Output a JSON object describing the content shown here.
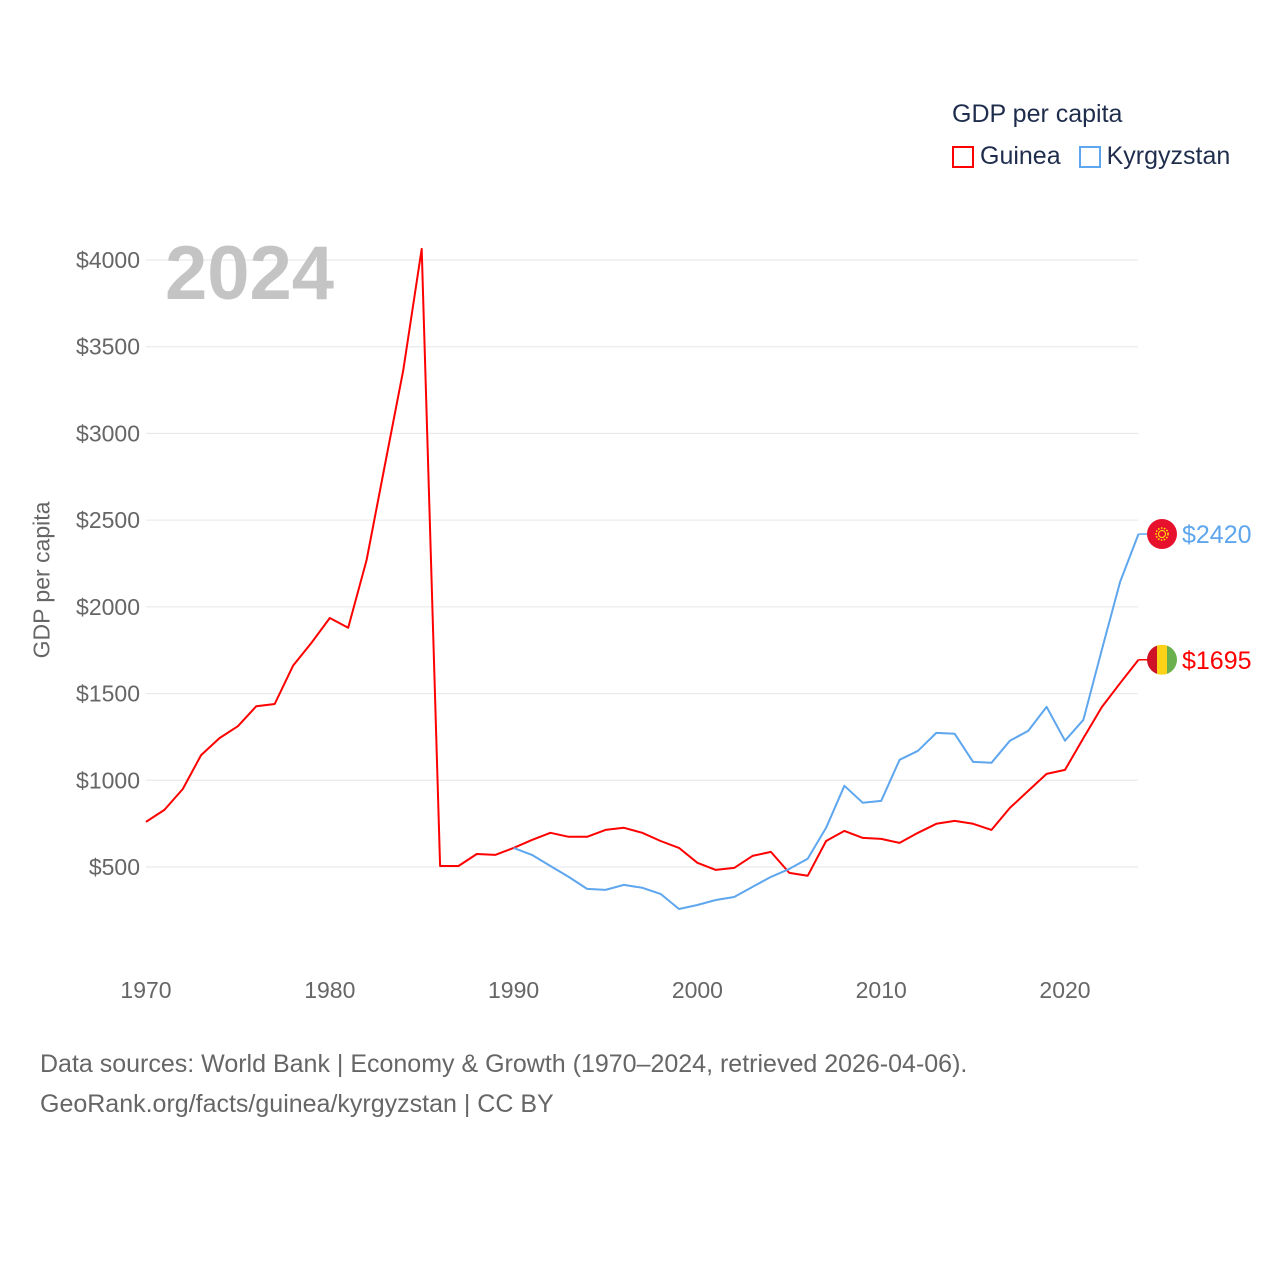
{
  "chart_data": {
    "type": "line",
    "title": "GDP per capita",
    "ylabel": "GDP per capita",
    "xlabel": "",
    "year_label": "2024",
    "xlim": [
      1970,
      2024
    ],
    "ylim": [
      0,
      4100
    ],
    "x_ticks": [
      1970,
      1980,
      1990,
      2000,
      2010,
      2020
    ],
    "y_ticks": [
      500,
      1000,
      1500,
      2000,
      2500,
      3000,
      3500,
      4000
    ],
    "y_tick_labels": [
      "$500",
      "$1000",
      "$1500",
      "$2000",
      "$2500",
      "$3000",
      "$3500",
      "$4000"
    ],
    "grid": true,
    "legend_placement": "top-right",
    "series": [
      {
        "name": "Guinea",
        "color": "#ff0000",
        "end_label": "$1695",
        "start_year": 1970,
        "values": [
          760,
          829,
          950,
          1145,
          1243,
          1312,
          1427,
          1440,
          1660,
          1792,
          1936,
          1879,
          2270,
          2818,
          3366,
          4064,
          506,
          506,
          575,
          570,
          610,
          656,
          697,
          674,
          674,
          714,
          726,
          697,
          650,
          610,
          524,
          483,
          495,
          564,
          587,
          466,
          449,
          650,
          708,
          668,
          662,
          639,
          697,
          749,
          766,
          749,
          714,
          841,
          939,
          1037,
          1060,
          1243,
          1422,
          1560,
          1695
        ]
      },
      {
        "name": "Kyrgyzstan",
        "color": "#5ea6ee",
        "end_label": "$2420",
        "start_year": 1990,
        "values": [
          610,
          570,
          506,
          443,
          374,
          368,
          397,
          380,
          345,
          258,
          281,
          310,
          327,
          385,
          443,
          489,
          547,
          726,
          968,
          870,
          881,
          1118,
          1170,
          1273,
          1268,
          1106,
          1101,
          1228,
          1285,
          1423,
          1228,
          1349,
          1752,
          2144,
          2420
        ]
      }
    ]
  },
  "footer": {
    "line1": "Data sources: World Bank | Economy & Growth (1970–2024, retrieved 2026-04-06).",
    "line2": "GeoRank.org/facts/guinea/kyrgyzstan | CC BY"
  }
}
